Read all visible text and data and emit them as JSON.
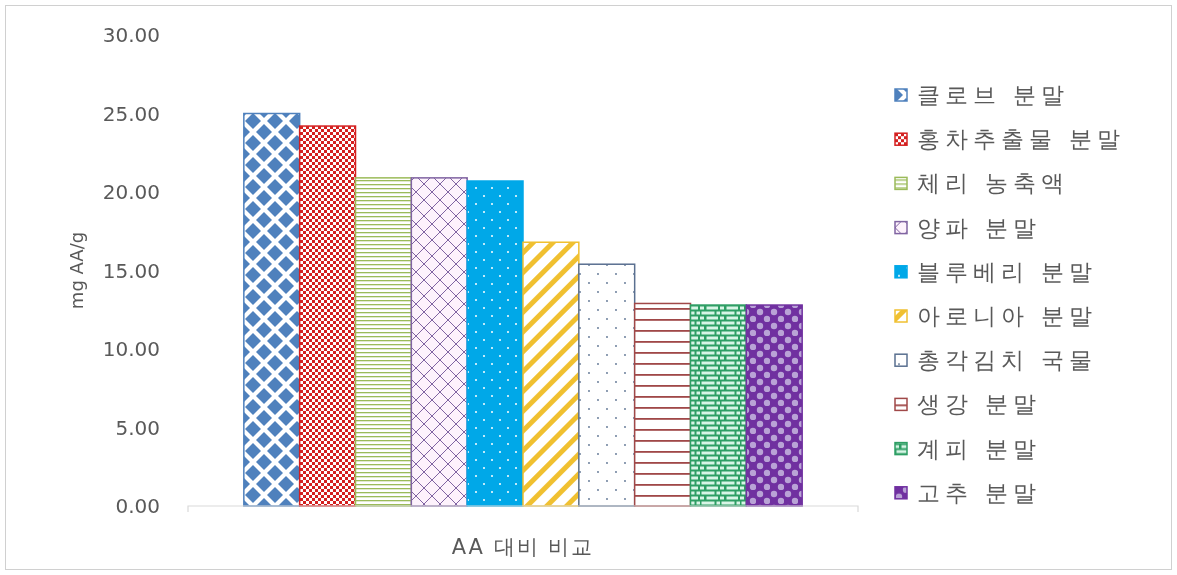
{
  "chart_data": {
    "type": "bar",
    "categories": [
      null
    ],
    "xlabel": "AA 대비 비교",
    "ylabel": "mg AA/g",
    "ylim": [
      0,
      30
    ],
    "yticks": [
      {
        "value": 0,
        "label": "0.00"
      },
      {
        "value": 5,
        "label": "5.00"
      },
      {
        "value": 10,
        "label": "10.00"
      },
      {
        "value": 15,
        "label": "15.00"
      },
      {
        "value": 20,
        "label": "20.00"
      },
      {
        "value": 25,
        "label": "25.00"
      },
      {
        "value": 30,
        "label": "30.00"
      }
    ],
    "legend": "right",
    "series": [
      {
        "name": "클로브 분말",
        "color": "#4f81bd",
        "values": [
          25.0
        ]
      },
      {
        "name": "홍차추출물 분말",
        "color": "#d42020",
        "values": [
          24.2
        ]
      },
      {
        "name": "체리 농축액",
        "color": "#9bbb59",
        "values": [
          20.9
        ]
      },
      {
        "name": "양파 분말",
        "color": "#8064a2",
        "values": [
          20.9
        ]
      },
      {
        "name": "블루베리 분말",
        "color": "#00a8e8",
        "values": [
          20.7
        ]
      },
      {
        "name": "아로니아 분말",
        "color": "#f0c030",
        "values": [
          16.8
        ]
      },
      {
        "name": "총각김치 국물",
        "color": "#5a7090",
        "values": [
          15.4
        ]
      },
      {
        "name": "생강 분말",
        "color": "#a04848",
        "values": [
          12.9
        ]
      },
      {
        "name": "계피 분말",
        "color": "#2e9e64",
        "values": [
          12.8
        ]
      },
      {
        "name": "고추 분말",
        "color": "#7030a0",
        "values": [
          12.8
        ]
      }
    ]
  }
}
